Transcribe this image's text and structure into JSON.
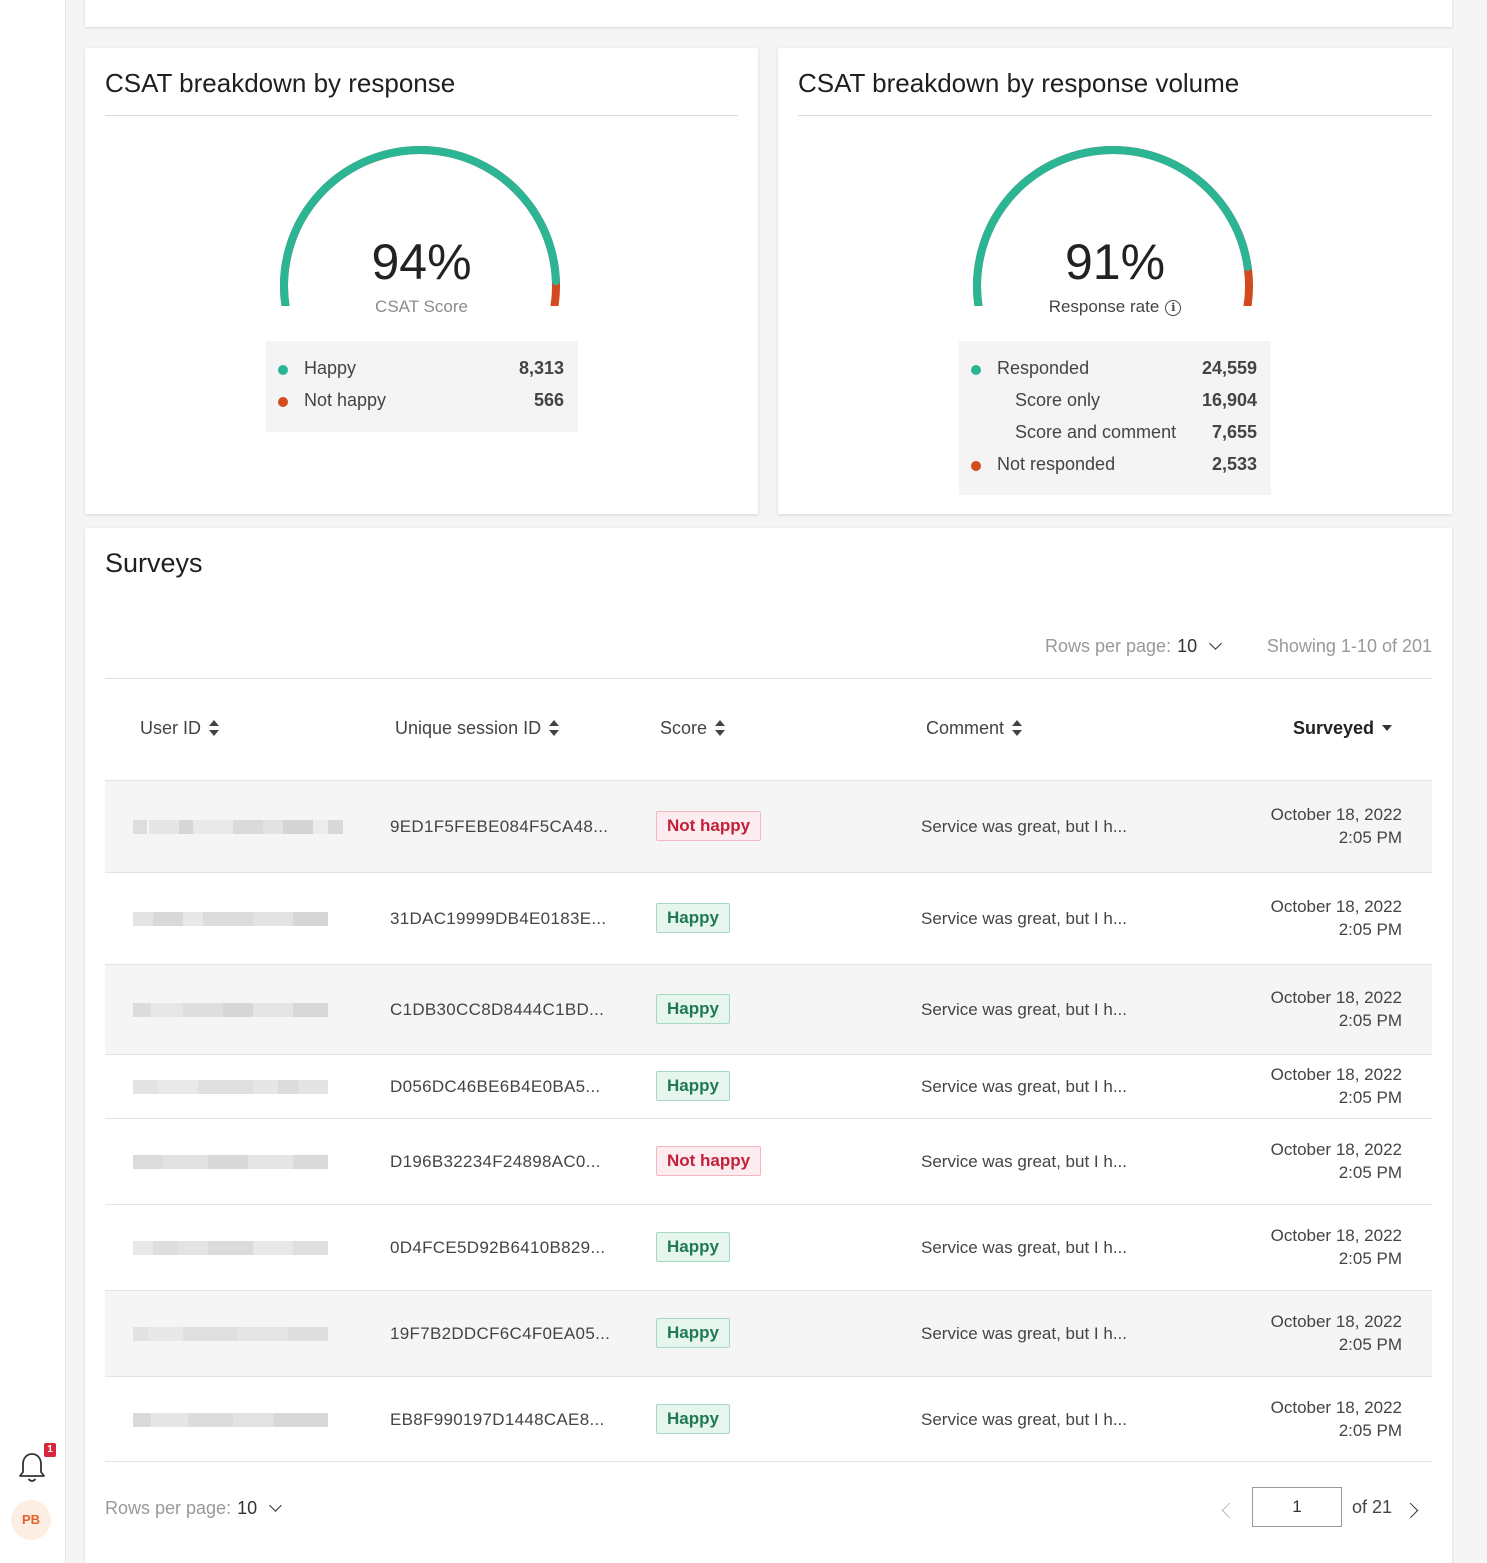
{
  "colors": {
    "accent_green": "#2bb594",
    "accent_red": "#d34a1e"
  },
  "gauge1": {
    "title": "CSAT breakdown by response",
    "value": "94%",
    "fraction": 0.94,
    "label": "CSAT Score",
    "legend": [
      {
        "label": "Happy",
        "value": "8,313",
        "color": "#2bb594"
      },
      {
        "label": "Not happy",
        "value": "566",
        "color": "#d34a1e"
      }
    ]
  },
  "gauge2": {
    "title": "CSAT breakdown by response volume",
    "value": "91%",
    "fraction": 0.91,
    "label": "Response rate",
    "info_icon": "info-icon",
    "legend": [
      {
        "label": "Responded",
        "value": "24,559",
        "color": "#2bb594"
      },
      {
        "label": "Score only",
        "value": "16,904"
      },
      {
        "label": "Score and comment",
        "value": "7,655"
      },
      {
        "label": "Not responded",
        "value": "2,533",
        "color": "#d34a1e"
      }
    ]
  },
  "surveys": {
    "title": "Surveys",
    "rows_per_page_label": "Rows per page:",
    "rows_per_page_value": "10",
    "showing": "Showing 1-10 of 201",
    "columns": [
      "User ID",
      "Unique session ID",
      "Score",
      "Comment",
      "Surveyed"
    ],
    "rows": [
      {
        "session": "9ED1F5FEBE084F5CA48...",
        "score": "Not happy",
        "comment": "Service was great, but I h...",
        "date": "October 18, 2022",
        "time": "2:05 PM"
      },
      {
        "session": "31DAC19999DB4E0183E...",
        "score": "Happy",
        "comment": "Service was great, but I h...",
        "date": "October 18, 2022",
        "time": "2:05 PM"
      },
      {
        "session": "C1DB30CC8D8444C1BD...",
        "score": "Happy",
        "comment": "Service was great, but I h...",
        "date": "October 18, 2022",
        "time": "2:05 PM"
      },
      {
        "session": "D056DC46BE6B4E0BA5...",
        "score": "Happy",
        "comment": "Service was great, but I h...",
        "date": "October 18, 2022",
        "time": "2:05 PM"
      },
      {
        "session": "D196B32234F24898AC0...",
        "score": "Not happy",
        "comment": "Service was great, but I h...",
        "date": "October 18, 2022",
        "time": "2:05 PM"
      },
      {
        "session": "0D4FCE5D92B6410B829...",
        "score": "Happy",
        "comment": "Service was great, but I h...",
        "date": "October 18, 2022",
        "time": "2:05 PM"
      },
      {
        "session": "19F7B2DDCF6C4F0EA05...",
        "score": "Happy",
        "comment": "Service was great, but I h...",
        "date": "October 18, 2022",
        "time": "2:05 PM"
      },
      {
        "session": "EB8F990197D1448CAE8...",
        "score": "Happy",
        "comment": "Service was great, but I h...",
        "date": "October 18, 2022",
        "time": "2:05 PM"
      }
    ],
    "pagination": {
      "page": "1",
      "of_label": "of 21"
    }
  },
  "sidebar": {
    "avatar_initials": "PB",
    "notification_count": "1",
    "bell_icon": "bell-icon"
  }
}
